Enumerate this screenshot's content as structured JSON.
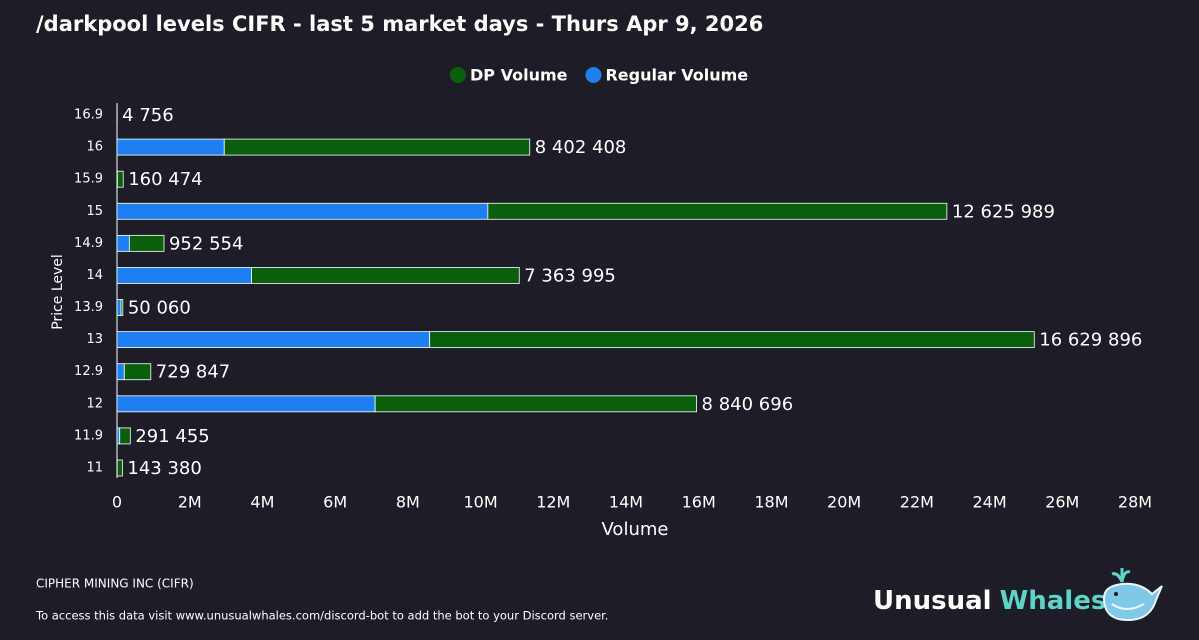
{
  "chart_data": {
    "type": "stacked-barh",
    "title": "/darkpool levels CIFR - last 5 market days - Thurs Apr 9, 2026",
    "xlabel": "Volume",
    "ylabel": "Price Level",
    "categories": [
      "16.9",
      "16",
      "15.9",
      "15",
      "14.9",
      "14",
      "13.9",
      "13",
      "12.9",
      "12",
      "11.9",
      "11"
    ],
    "series": [
      {
        "name": "DP Volume",
        "color": "#0b5e0b",
        "values": [
          4756,
          8402408,
          160474,
          12625989,
          952554,
          7363995,
          50060,
          16629896,
          729847,
          8840696,
          291455,
          143380
        ],
        "value_labels": [
          "4 756",
          "8 402 408",
          "160 474",
          "12 625 989",
          "952 554",
          "7 363 995",
          "50 060",
          "16 629 896",
          "729 847",
          "8 840 696",
          "291 455",
          "143 380"
        ]
      },
      {
        "name": "Regular Volume",
        "color": "#1e7ff0",
        "values": [
          0,
          2950000,
          10000,
          10200000,
          340000,
          3700000,
          110000,
          8600000,
          200000,
          7100000,
          75000,
          5000
        ]
      }
    ],
    "stack_order": [
      1,
      0
    ],
    "xlim": [
      0,
      28000000
    ],
    "xticks": [
      0,
      {
        "value": 2000000,
        "label": "2M"
      },
      {
        "value": 4000000,
        "label": "4M"
      },
      {
        "value": 6000000,
        "label": "6M"
      },
      {
        "value": 8000000,
        "label": "8M"
      },
      {
        "value": 10000000,
        "label": "10M"
      },
      {
        "value": 12000000,
        "label": "12M"
      },
      {
        "value": 14000000,
        "label": "14M"
      },
      {
        "value": 16000000,
        "label": "16M"
      },
      {
        "value": 18000000,
        "label": "18M"
      },
      {
        "value": 20000000,
        "label": "20M"
      },
      {
        "value": 22000000,
        "label": "22M"
      },
      {
        "value": 24000000,
        "label": "24M"
      },
      {
        "value": 26000000,
        "label": "26M"
      },
      {
        "value": 28000000,
        "label": "28M"
      }
    ],
    "legend": "top"
  },
  "footer": {
    "company": "CIPHER MINING INC (CIFR)",
    "note": "To access this data visit www.unusualwhales.com/discord-bot to add the bot to your Discord server."
  },
  "brand": {
    "first": "Unusual",
    "second": "Whales"
  }
}
